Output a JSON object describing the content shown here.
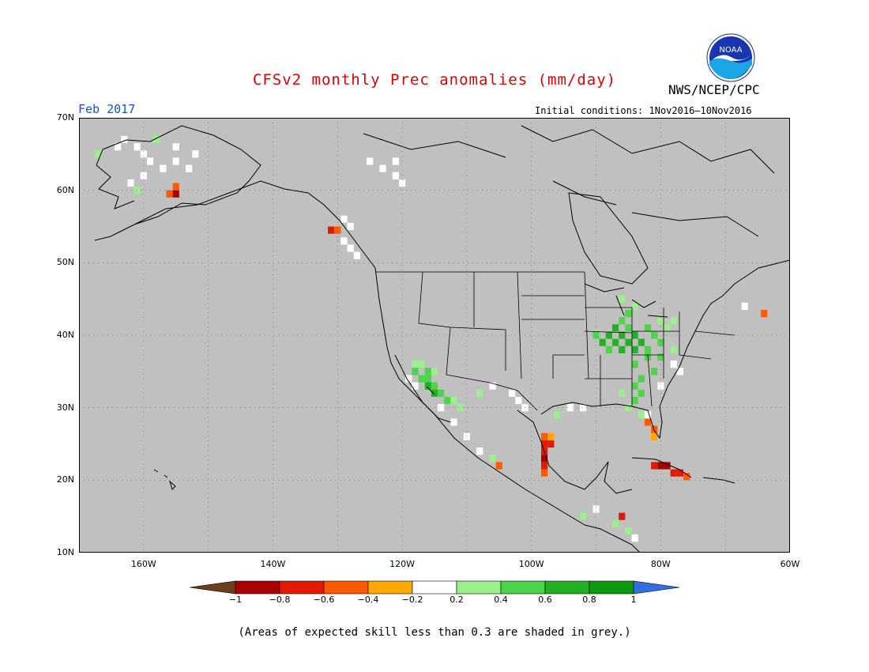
{
  "title": "CFSv2 monthly Prec anomalies (mm/day)",
  "agency": "NWS/NCEP/CPC",
  "period": "Feb 2017",
  "initial_conditions": "Initial conditions: 1Nov2016–10Nov2016",
  "footnote": "(Areas of expected skill less than 0.3 are shaded in grey.)",
  "logo_text": "NOAA",
  "colors": {
    "background_grey": "#c0c0c0",
    "title_red": "#e00000",
    "period_blue": "#1a4fd6"
  },
  "map": {
    "lat_range": [
      10,
      70
    ],
    "lon_range": [
      -170,
      -60
    ],
    "lat_ticks": [
      "70N",
      "60N",
      "50N",
      "40N",
      "30N",
      "20N",
      "10N"
    ],
    "lon_ticks": [
      "160W",
      "140W",
      "120W",
      "100W",
      "80W",
      "60W"
    ],
    "anomaly_cells": [
      {
        "lat": 67,
        "lon": -163,
        "cat": "0"
      },
      {
        "lat": 66,
        "lon": -161,
        "cat": "0"
      },
      {
        "lat": 65,
        "lon": -160,
        "cat": "0"
      },
      {
        "lat": 64,
        "lon": -159,
        "cat": "0"
      },
      {
        "lat": 63,
        "lon": -157,
        "cat": "0"
      },
      {
        "lat": 62,
        "lon": -160,
        "cat": "0"
      },
      {
        "lat": 66,
        "lon": -155,
        "cat": "0"
      },
      {
        "lat": 64,
        "lon": -155,
        "cat": "0"
      },
      {
        "lat": 63,
        "lon": -153,
        "cat": "0"
      },
      {
        "lat": 65,
        "lon": -152,
        "cat": "0"
      },
      {
        "lat": 66,
        "lon": -164,
        "cat": "0"
      },
      {
        "lat": 61,
        "lon": -162,
        "cat": "0"
      },
      {
        "lat": 67,
        "lon": -158,
        "cat": "0.2"
      },
      {
        "lat": 65,
        "lon": -167,
        "cat": "0.2"
      },
      {
        "lat": 60,
        "lon": -161,
        "cat": "0.2"
      },
      {
        "lat": 59.5,
        "lon": -155,
        "cat": "-0.8"
      },
      {
        "lat": 59.5,
        "lon": -156,
        "cat": "-0.4"
      },
      {
        "lat": 60.5,
        "lon": -155,
        "cat": "-0.4"
      },
      {
        "lat": 54.5,
        "lon": -131,
        "cat": "-0.6"
      },
      {
        "lat": 54.5,
        "lon": -130,
        "cat": "-0.4"
      },
      {
        "lat": 56,
        "lon": -129,
        "cat": "0"
      },
      {
        "lat": 55,
        "lon": -128,
        "cat": "0"
      },
      {
        "lat": 53,
        "lon": -129,
        "cat": "0"
      },
      {
        "lat": 52,
        "lon": -128,
        "cat": "0"
      },
      {
        "lat": 51,
        "lon": -127,
        "cat": "0"
      },
      {
        "lat": 64,
        "lon": -125,
        "cat": "0"
      },
      {
        "lat": 63,
        "lon": -123,
        "cat": "0"
      },
      {
        "lat": 62,
        "lon": -121,
        "cat": "0"
      },
      {
        "lat": 64,
        "lon": -121,
        "cat": "0"
      },
      {
        "lat": 61,
        "lon": -120,
        "cat": "0"
      },
      {
        "lat": 36,
        "lon": -118,
        "cat": "0.2"
      },
      {
        "lat": 36,
        "lon": -117,
        "cat": "0.2"
      },
      {
        "lat": 35,
        "lon": -116,
        "cat": "0.4"
      },
      {
        "lat": 35,
        "lon": -118,
        "cat": "0.4"
      },
      {
        "lat": 34,
        "lon": -117,
        "cat": "0.4"
      },
      {
        "lat": 34,
        "lon": -116,
        "cat": "0.4"
      },
      {
        "lat": 33,
        "lon": -116,
        "cat": "0.6"
      },
      {
        "lat": 33,
        "lon": -115,
        "cat": "0.4"
      },
      {
        "lat": 32,
        "lon": -115,
        "cat": "0.6"
      },
      {
        "lat": 32,
        "lon": -114,
        "cat": "0.4"
      },
      {
        "lat": 31,
        "lon": -113,
        "cat": "0.4"
      },
      {
        "lat": 31,
        "lon": -112,
        "cat": "0.2"
      },
      {
        "lat": 30,
        "lon": -111,
        "cat": "0.2"
      },
      {
        "lat": 35,
        "lon": -115,
        "cat": "0.2"
      },
      {
        "lat": 34,
        "lon": -119,
        "cat": "0"
      },
      {
        "lat": 33,
        "lon": -118,
        "cat": "0"
      },
      {
        "lat": 30,
        "lon": -114,
        "cat": "0"
      },
      {
        "lat": 28,
        "lon": -112,
        "cat": "0"
      },
      {
        "lat": 26,
        "lon": -110,
        "cat": "0"
      },
      {
        "lat": 24,
        "lon": -108,
        "cat": "0"
      },
      {
        "lat": 23,
        "lon": -106,
        "cat": "0.2"
      },
      {
        "lat": 22,
        "lon": -105,
        "cat": "-0.4"
      },
      {
        "lat": 32,
        "lon": -108,
        "cat": "0.2"
      },
      {
        "lat": 33,
        "lon": -106,
        "cat": "0"
      },
      {
        "lat": 32,
        "lon": -103,
        "cat": "0"
      },
      {
        "lat": 31,
        "lon": -102,
        "cat": "0"
      },
      {
        "lat": 30,
        "lon": -101,
        "cat": "0"
      },
      {
        "lat": 26,
        "lon": -98,
        "cat": "-0.4"
      },
      {
        "lat": 25,
        "lon": -98,
        "cat": "-0.6"
      },
      {
        "lat": 25,
        "lon": -97,
        "cat": "-0.6"
      },
      {
        "lat": 24,
        "lon": -98,
        "cat": "-0.6"
      },
      {
        "lat": 23,
        "lon": -98,
        "cat": "-0.8"
      },
      {
        "lat": 22,
        "lon": -98,
        "cat": "-0.6"
      },
      {
        "lat": 21,
        "lon": -98,
        "cat": "-0.4"
      },
      {
        "lat": 26,
        "lon": -97,
        "cat": "-0.2"
      },
      {
        "lat": 29,
        "lon": -96,
        "cat": "0.2"
      },
      {
        "lat": 30,
        "lon": -94,
        "cat": "0"
      },
      {
        "lat": 30,
        "lon": -92,
        "cat": "0"
      },
      {
        "lat": 43,
        "lon": -85,
        "cat": "0.4"
      },
      {
        "lat": 42,
        "lon": -86,
        "cat": "0.4"
      },
      {
        "lat": 41,
        "lon": -87,
        "cat": "0.6"
      },
      {
        "lat": 41,
        "lon": -85,
        "cat": "0.4"
      },
      {
        "lat": 40,
        "lon": -88,
        "cat": "0.6"
      },
      {
        "lat": 40,
        "lon": -86,
        "cat": "0.6"
      },
      {
        "lat": 40,
        "lon": -84,
        "cat": "0.6"
      },
      {
        "lat": 39,
        "lon": -89,
        "cat": "0.6"
      },
      {
        "lat": 39,
        "lon": -87,
        "cat": "0.6"
      },
      {
        "lat": 39,
        "lon": -85,
        "cat": "0.6"
      },
      {
        "lat": 39,
        "lon": -83,
        "cat": "0.6"
      },
      {
        "lat": 38,
        "lon": -88,
        "cat": "0.4"
      },
      {
        "lat": 38,
        "lon": -86,
        "cat": "0.6"
      },
      {
        "lat": 38,
        "lon": -84,
        "cat": "0.6"
      },
      {
        "lat": 38,
        "lon": -82,
        "cat": "0.4"
      },
      {
        "lat": 40,
        "lon": -90,
        "cat": "0.4"
      },
      {
        "lat": 41,
        "lon": -82,
        "cat": "0.4"
      },
      {
        "lat": 40,
        "lon": -81,
        "cat": "0.4"
      },
      {
        "lat": 39,
        "lon": -80,
        "cat": "0.4"
      },
      {
        "lat": 37,
        "lon": -82,
        "cat": "0.4"
      },
      {
        "lat": 37,
        "lon": -80,
        "cat": "0.4"
      },
      {
        "lat": 36,
        "lon": -84,
        "cat": "0.4"
      },
      {
        "lat": 35,
        "lon": -81,
        "cat": "0.4"
      },
      {
        "lat": 34,
        "lon": -83,
        "cat": "0.4"
      },
      {
        "lat": 33,
        "lon": -84,
        "cat": "0.4"
      },
      {
        "lat": 32,
        "lon": -83,
        "cat": "0.4"
      },
      {
        "lat": 31,
        "lon": -84,
        "cat": "0.4"
      },
      {
        "lat": 32,
        "lon": -86,
        "cat": "0.2"
      },
      {
        "lat": 30,
        "lon": -85,
        "cat": "0.2"
      },
      {
        "lat": 29,
        "lon": -83,
        "cat": "0.2"
      },
      {
        "lat": 42,
        "lon": -80,
        "cat": "0.2"
      },
      {
        "lat": 42,
        "lon": -78,
        "cat": "0.2"
      },
      {
        "lat": 44,
        "lon": -84,
        "cat": "0.2"
      },
      {
        "lat": 38,
        "lon": -78,
        "cat": "0.2"
      },
      {
        "lat": 36,
        "lon": -78,
        "cat": "0"
      },
      {
        "lat": 35,
        "lon": -77,
        "cat": "0"
      },
      {
        "lat": 33,
        "lon": -80,
        "cat": "0"
      },
      {
        "lat": 41,
        "lon": -79,
        "cat": "0.2"
      },
      {
        "lat": 45,
        "lon": -86,
        "cat": "0.2"
      },
      {
        "lat": 28,
        "lon": -82,
        "cat": "-0.4"
      },
      {
        "lat": 27,
        "lon": -81,
        "cat": "-0.4"
      },
      {
        "lat": 26,
        "lon": -81,
        "cat": "-0.2"
      },
      {
        "lat": 29,
        "lon": -82,
        "cat": "0"
      },
      {
        "lat": 43,
        "lon": -64,
        "cat": "-0.4"
      },
      {
        "lat": 44,
        "lon": -67,
        "cat": "0"
      },
      {
        "lat": 22,
        "lon": -80,
        "cat": "-0.8"
      },
      {
        "lat": 22,
        "lon": -79,
        "cat": "-0.8"
      },
      {
        "lat": 21,
        "lon": -78,
        "cat": "-0.6"
      },
      {
        "lat": 21,
        "lon": -77,
        "cat": "-0.6"
      },
      {
        "lat": 20.5,
        "lon": -76,
        "cat": "-0.4"
      },
      {
        "lat": 22,
        "lon": -81,
        "cat": "-0.6"
      },
      {
        "lat": 15,
        "lon": -86,
        "cat": "-0.6"
      },
      {
        "lat": 14,
        "lon": -87,
        "cat": "0.2"
      },
      {
        "lat": 13,
        "lon": -85,
        "cat": "0.2"
      },
      {
        "lat": 12,
        "lon": -84,
        "cat": "0"
      },
      {
        "lat": 16,
        "lon": -90,
        "cat": "0"
      },
      {
        "lat": 15,
        "lon": -92,
        "cat": "0.2"
      }
    ]
  },
  "colorbar": {
    "labels": [
      "−1",
      "−0.8",
      "−0.6",
      "−0.4",
      "−0.2",
      "0.2",
      "0.4",
      "0.6",
      "0.8",
      "1"
    ],
    "colors": {
      "below": "#6e3e1c",
      "-0.8": "#a80000",
      "-0.6": "#e21b00",
      "-0.4": "#ff5a00",
      "-0.2": "#ffa800",
      "0": "#ffffff",
      "0.2": "#9cf08c",
      "0.4": "#4ed44a",
      "0.6": "#22b122",
      "0.8": "#0e9a0e",
      "above": "#3070e0"
    }
  }
}
